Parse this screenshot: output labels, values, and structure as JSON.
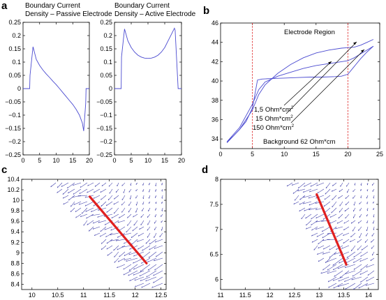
{
  "panel_labels": {
    "a": "a",
    "b": "b",
    "c": "c",
    "d": "d"
  },
  "colors": {
    "curve": "#4a4ad0",
    "electrode": "#e02020",
    "region_line": "#e03030",
    "quiver": "#3a3aa8"
  },
  "chart_data": [
    {
      "id": "a1",
      "type": "line",
      "title_lines": [
        "Boundary Current",
        "Density – Passive Electrode"
      ],
      "xlim": [
        0,
        20
      ],
      "ylim": [
        -0.25,
        0.25
      ],
      "xticks": [
        "0",
        "5",
        "10",
        "15",
        "20"
      ],
      "yticks": [
        "0.25",
        "0.2",
        "0.15",
        "0.1",
        "0.05",
        "0",
        "−0.05",
        "−0.1",
        "−0.15",
        "−0.2",
        "−0.25"
      ],
      "series": [
        {
          "x": [
            0,
            2,
            2.1,
            3,
            4,
            5,
            6,
            7,
            8,
            9,
            10,
            11,
            12,
            13,
            14,
            15,
            16,
            17,
            17.9,
            18.3,
            18.9,
            19,
            20
          ],
          "y": [
            0,
            0,
            0.05,
            0.158,
            0.11,
            0.087,
            0.07,
            0.055,
            0.042,
            0.028,
            0.015,
            0.0,
            -0.015,
            -0.03,
            -0.045,
            -0.06,
            -0.078,
            -0.1,
            -0.13,
            -0.16,
            -0.055,
            0,
            0
          ]
        }
      ]
    },
    {
      "id": "a2",
      "type": "line",
      "title_lines": [
        "Boundary Current",
        "Density – Active Electrode"
      ],
      "xlim": [
        0,
        20
      ],
      "ylim": [
        -0.25,
        0.25
      ],
      "xticks": [
        "0",
        "5",
        "10",
        "15",
        "20"
      ],
      "yticks": [
        "0.25",
        "0.2",
        "0.15",
        "0.1",
        "0.05",
        "0",
        "−0.05",
        "−0.1",
        "−0.15",
        "−0.2",
        "−0.25"
      ],
      "series": [
        {
          "x": [
            0,
            2,
            2.1,
            3,
            4,
            5,
            6,
            7,
            8,
            9,
            10,
            11,
            12,
            13,
            14,
            15,
            16,
            17,
            17.9,
            18.1,
            19,
            20
          ],
          "y": [
            0,
            0,
            0.12,
            0.225,
            0.18,
            0.155,
            0.138,
            0.126,
            0.119,
            0.115,
            0.114,
            0.115,
            0.119,
            0.126,
            0.138,
            0.155,
            0.18,
            0.205,
            0.228,
            0.22,
            0,
            0
          ]
        }
      ]
    },
    {
      "id": "b",
      "type": "line",
      "title": "Electrode Region",
      "xlim": [
        0,
        25
      ],
      "ylim": [
        33,
        46
      ],
      "xticks": [
        "0",
        "5",
        "10",
        "15",
        "20",
        "25"
      ],
      "yticks": [
        "46",
        "44",
        "42",
        "40",
        "38",
        "36",
        "34"
      ],
      "region_lines_x": [
        5,
        20
      ],
      "annotations": [
        {
          "base": "1,5 Ohm*cm",
          "sup": "2"
        },
        {
          "base": "15 Ohm*cm",
          "sup": "2"
        },
        {
          "base": "150 Ohm*cm",
          "sup": "2"
        }
      ],
      "footer": "Background 62 Ohm*cm",
      "series": [
        {
          "x": [
            1,
            2,
            3,
            4,
            5,
            5.8,
            6.5,
            8,
            10,
            12,
            14,
            16,
            18,
            19,
            20,
            21,
            22,
            23,
            24
          ],
          "y": [
            33.7,
            34.3,
            35.0,
            35.8,
            37.2,
            40.1,
            40.2,
            40.25,
            40.3,
            40.35,
            40.4,
            40.4,
            40.45,
            40.5,
            40.7,
            41.5,
            42.3,
            43.0,
            43.6
          ]
        },
        {
          "x": [
            1,
            3,
            5,
            6,
            7,
            9,
            11,
            13,
            15,
            17,
            19,
            20,
            21,
            22,
            23,
            24
          ],
          "y": [
            33.7,
            35.2,
            37.6,
            39.1,
            39.9,
            40.5,
            40.9,
            41.3,
            41.6,
            41.8,
            42.0,
            42.1,
            42.4,
            42.8,
            43.2,
            43.6
          ]
        },
        {
          "x": [
            1,
            3,
            5,
            6,
            7,
            9,
            11,
            13,
            15,
            17,
            19,
            20,
            21,
            22,
            23,
            24
          ],
          "y": [
            33.6,
            35.0,
            37.0,
            38.6,
            39.6,
            40.8,
            41.7,
            42.4,
            42.9,
            43.2,
            43.4,
            43.45,
            43.5,
            43.7,
            44.0,
            44.3
          ]
        }
      ]
    },
    {
      "id": "c",
      "type": "quiver",
      "xlim": [
        9.8,
        12.6
      ],
      "ylim": [
        8.3,
        10.4
      ],
      "xticks": [
        "10",
        "10.5",
        "11",
        "11.5",
        "12",
        "12.5"
      ],
      "yticks": [
        "10.4",
        "10.2",
        "10",
        "9.8",
        "9.6",
        "9.4",
        "9.2",
        "9",
        "8.8",
        "8.6",
        "8.4"
      ],
      "electrode": {
        "x": [
          11.12,
          12.22
        ],
        "y": [
          10.07,
          8.8
        ]
      }
    },
    {
      "id": "d",
      "type": "quiver",
      "xlim": [
        11,
        14.2
      ],
      "ylim": [
        5.8,
        8
      ],
      "xticks": [
        "11",
        "11.5",
        "12",
        "12.5",
        "13",
        "13.5",
        "14"
      ],
      "yticks": [
        "8",
        "7.5",
        "7",
        "6.5",
        "6"
      ],
      "electrode": {
        "x": [
          12.95,
          13.55
        ],
        "y": [
          7.7,
          6.3
        ]
      }
    }
  ]
}
